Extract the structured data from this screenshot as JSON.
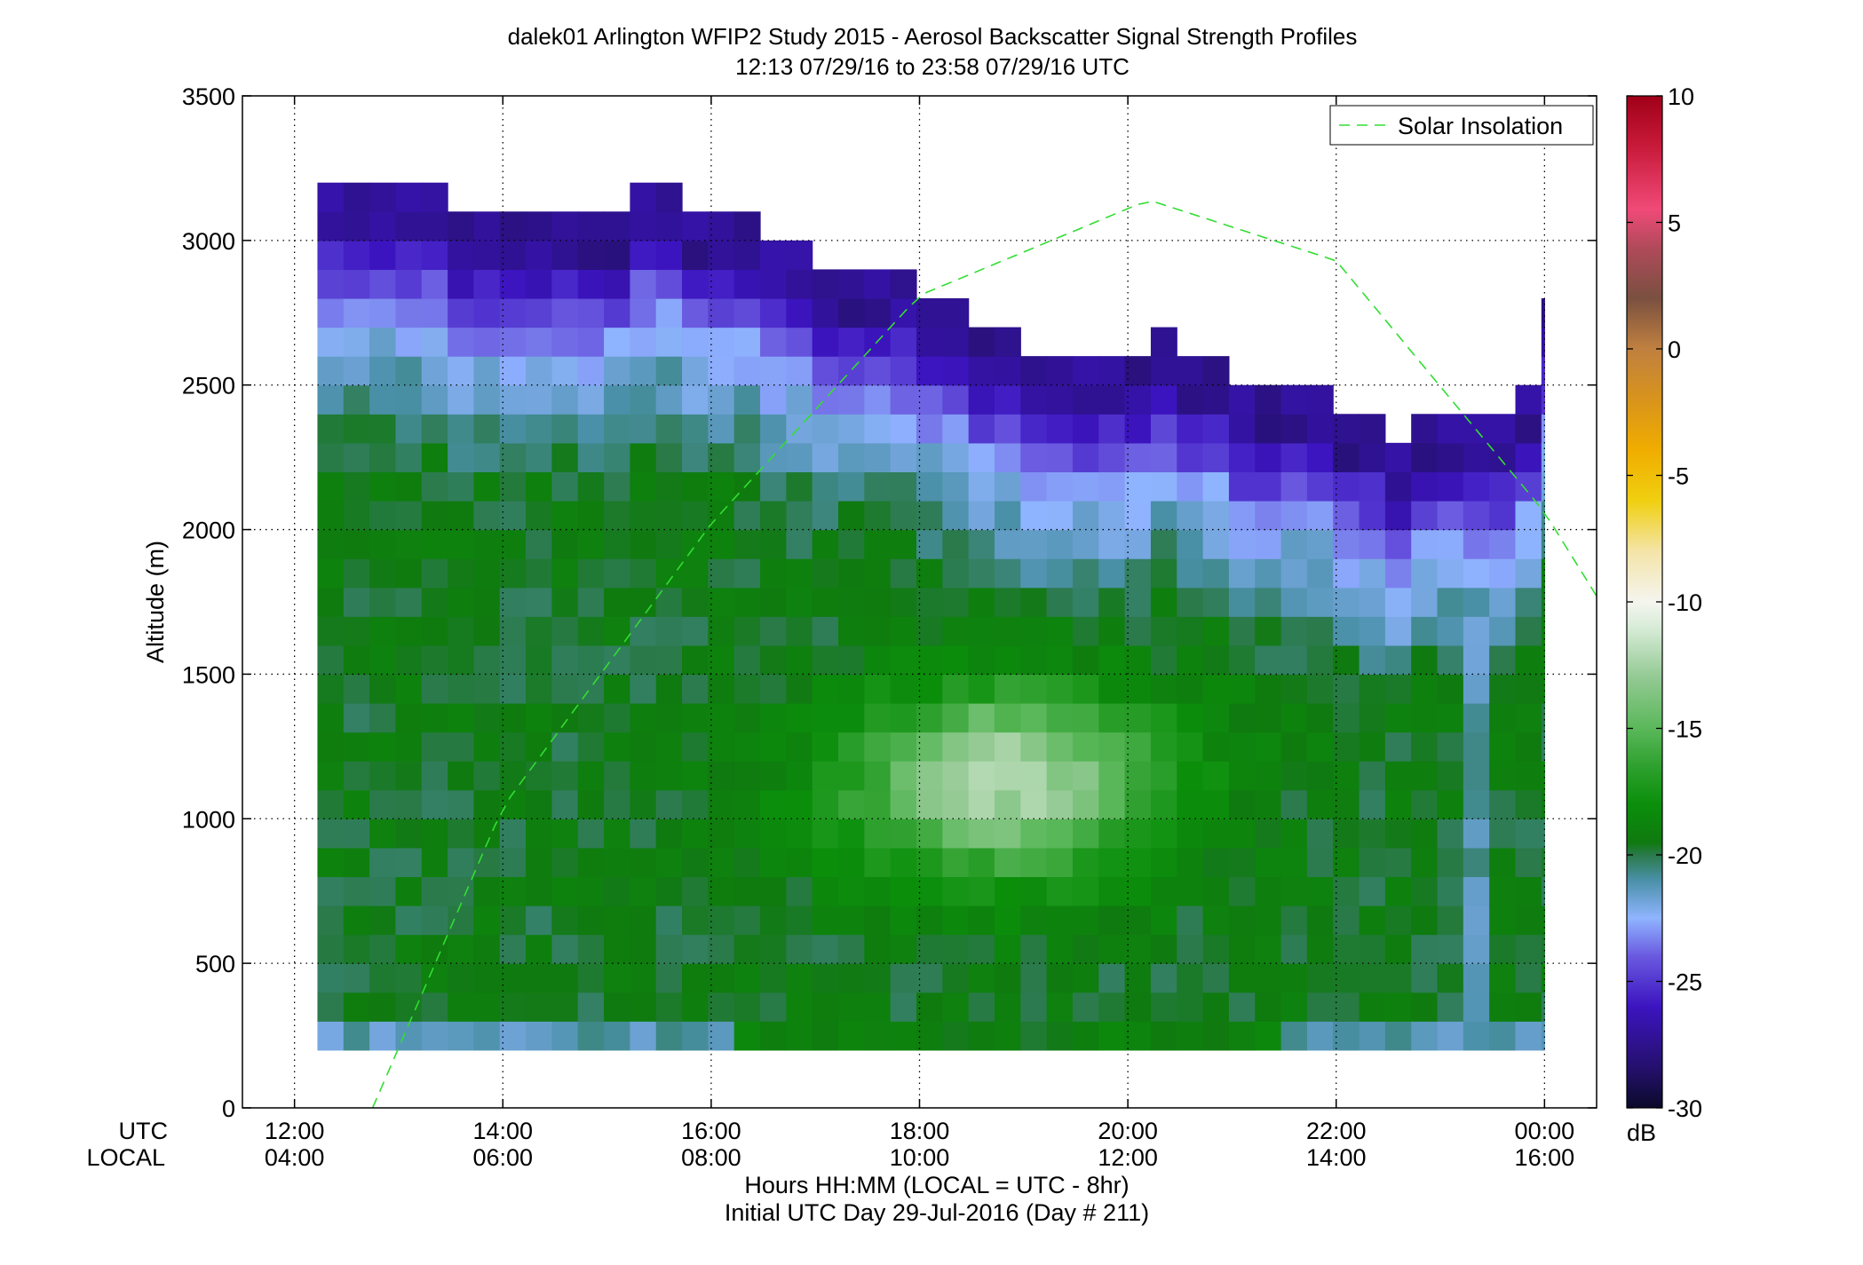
{
  "chart_data": {
    "type": "heatmap",
    "title": "dalek01 Arlington WFIP2 Study 2015 - Aerosol Backscatter Signal Strength Profiles",
    "subtitle": "12:13 07/29/16 to 23:58 07/29/16  UTC",
    "ylabel": "Altitude (m)",
    "xlabel": "Hours HH:MM  (LOCAL = UTC - 8hr)",
    "xlabel2": "Initial UTC Day 29-Jul-2016 (Day # 211)",
    "x_row_label_utc": "UTC",
    "x_row_label_local": "LOCAL",
    "ylim": [
      0,
      3500
    ],
    "xlim_hours": [
      11.5,
      24.5
    ],
    "grid": true,
    "yticks": [
      "0",
      "500",
      "1000",
      "1500",
      "2000",
      "2500",
      "3000",
      "3500"
    ],
    "xticks_utc": [
      "12:00",
      "14:00",
      "16:00",
      "18:00",
      "20:00",
      "22:00",
      "00:00"
    ],
    "xticks_local": [
      "04:00",
      "06:00",
      "08:00",
      "10:00",
      "12:00",
      "14:00",
      "16:00"
    ],
    "legend": {
      "entry": "Solar Insolation",
      "color": "#33dd33",
      "style": "dashed",
      "placement": "top-right"
    },
    "colorbar": {
      "unit": "dB",
      "range": [
        -30,
        10
      ],
      "ticks": [
        "10",
        "5",
        "0",
        "-5",
        "-10",
        "-15",
        "-20",
        "-25",
        "-30"
      ]
    },
    "data_extent": {
      "time_start_hours": 12.22,
      "time_end_hours": 24.0,
      "alt_bottom_m": 200
    },
    "cell_size": {
      "hours": 0.25,
      "alt_m": 100
    },
    "profile_tops_m": [
      [
        12.25,
        3200
      ],
      [
        13.25,
        3100
      ],
      [
        14.25,
        3100
      ],
      [
        15.0,
        3200
      ],
      [
        15.5,
        3100
      ],
      [
        16.25,
        3000
      ],
      [
        16.75,
        2900
      ],
      [
        17.75,
        2800
      ],
      [
        18.25,
        2700
      ],
      [
        18.75,
        2600
      ],
      [
        19.25,
        2600
      ],
      [
        19.75,
        2600
      ],
      [
        20.0,
        2700
      ],
      [
        20.25,
        2600
      ],
      [
        20.75,
        2500
      ],
      [
        21.25,
        2500
      ],
      [
        21.75,
        2400
      ],
      [
        22.25,
        2300
      ],
      [
        22.5,
        2400
      ],
      [
        23.25,
        2400
      ],
      [
        23.5,
        2500
      ],
      [
        23.75,
        2800
      ]
    ],
    "solar_insolation_curve": [
      [
        12.75,
        0
      ],
      [
        14.0,
        1040
      ],
      [
        16.0,
        2020
      ],
      [
        18.0,
        2810
      ],
      [
        20.2,
        3140
      ],
      [
        22.0,
        2930
      ],
      [
        24.0,
        2060
      ],
      [
        24.5,
        1770
      ]
    ]
  }
}
